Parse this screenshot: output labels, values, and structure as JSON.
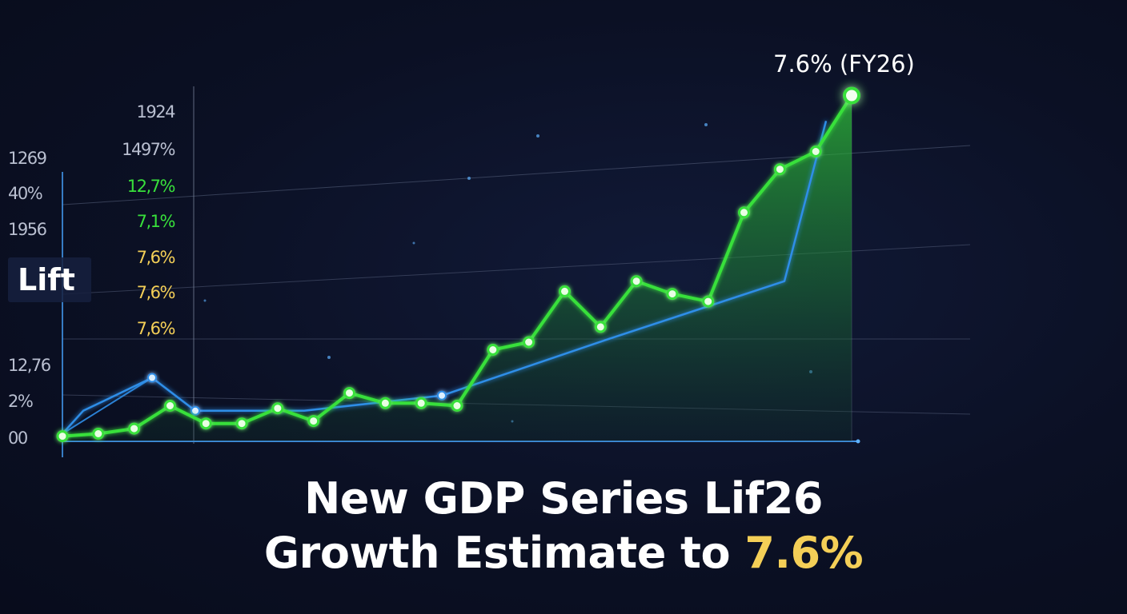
{
  "colors": {
    "background": "#0b1024",
    "green": "#38e03b",
    "blue": "#2f8ee8",
    "yellow": "#f4cf57",
    "gray_text": "#b9bfd0"
  },
  "label_tag": "Lift",
  "peak_annotation": "7.6% (FY26)",
  "headline": {
    "line1": "New GDP Series Lif26",
    "line2_prefix": "Growth Estimate to ",
    "line2_highlight": "7.6%"
  },
  "chart_data": {
    "type": "line",
    "title": "New GDP Series Lif26 Growth Estimate to 7.6%",
    "xlabel": "",
    "ylabel": "",
    "grid": true,
    "y_ticks_outer": [
      {
        "text": "1269",
        "color": "gray"
      },
      {
        "text": "40%",
        "color": "gray"
      },
      {
        "text": "1956",
        "color": "gray"
      },
      {
        "text": "12,76",
        "color": "gray"
      },
      {
        "text": "2%",
        "color": "gray"
      },
      {
        "text": "00",
        "color": "gray"
      }
    ],
    "y_ticks_inner": [
      {
        "text": "1924",
        "color": "gray"
      },
      {
        "text": "1497%",
        "color": "gray"
      },
      {
        "text": "12,7%",
        "color": "green"
      },
      {
        "text": "7,1%",
        "color": "green"
      },
      {
        "text": "7,6%",
        "color": "yellow"
      },
      {
        "text": "7,6%",
        "color": "yellow"
      },
      {
        "text": "7,6%",
        "color": "yellow"
      }
    ],
    "series": [
      {
        "color": "green",
        "style": "area",
        "values": [
          0.2,
          0.3,
          0.5,
          1.4,
          0.7,
          0.7,
          1.3,
          0.8,
          1.9,
          1.5,
          1.5,
          1.4,
          3.6,
          3.9,
          5.9,
          4.5,
          6.3,
          5.8,
          5.5,
          9.0,
          10.7,
          11.4,
          13.6
        ]
      },
      {
        "color": "blue",
        "style": "line",
        "values": [
          0.3,
          1.2,
          2.5,
          1.2,
          1.2,
          1.8,
          4.0,
          6.3,
          12.6
        ]
      }
    ],
    "annotations": [
      {
        "text": "7.6% (FY26)",
        "at": "last green point"
      }
    ]
  }
}
